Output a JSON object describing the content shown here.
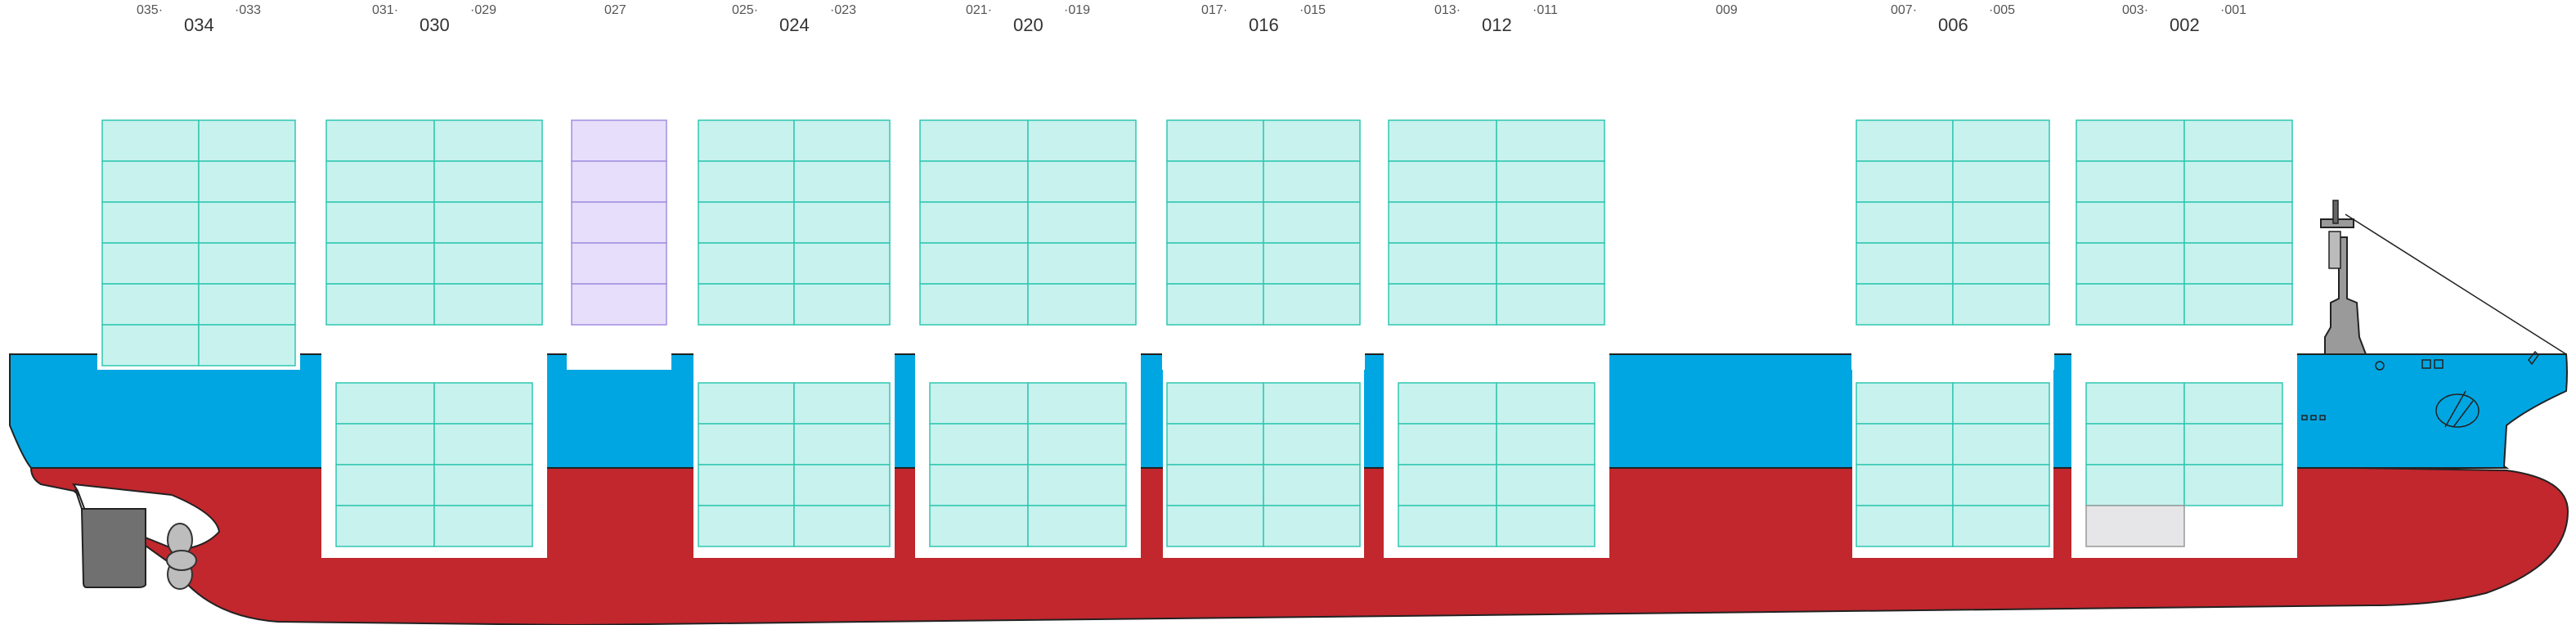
{
  "colors": {
    "hull_blue": "#00a6e2",
    "hull_red": "#c1272d",
    "container_fill": "#c8f2ee",
    "container_stroke": "#2fc7b1",
    "highlight_fill": "#e6defa",
    "highlight_stroke": "#a48ee2",
    "empty_fill": "#e6e6e8",
    "hatch_white": "#ffffff",
    "rudder": "#707070",
    "outline": "#222222"
  },
  "bays": [
    {
      "label": "034",
      "left_label": "035",
      "right_label": "033",
      "above_tiers": 6,
      "hold": false,
      "status": "loaded"
    },
    {
      "label": "030",
      "left_label": "031",
      "right_label": "029",
      "above_tiers": 5,
      "hold": true,
      "hold_tiers": 4,
      "status": "loaded"
    },
    {
      "label": "027",
      "above_tiers": 5,
      "hold": false,
      "status": "highlighted"
    },
    {
      "label": "024",
      "left_label": "025",
      "right_label": "023",
      "above_tiers": 5,
      "hold": true,
      "hold_tiers": 4,
      "status": "loaded"
    },
    {
      "label": "020",
      "left_label": "021",
      "right_label": "019",
      "above_tiers": 5,
      "hold": true,
      "hold_tiers": 4,
      "status": "loaded"
    },
    {
      "label": "016",
      "left_label": "017",
      "right_label": "015",
      "above_tiers": 5,
      "hold": true,
      "hold_tiers": 4,
      "status": "loaded"
    },
    {
      "label": "012",
      "left_label": "013",
      "right_label": "011",
      "above_tiers": 5,
      "hold": true,
      "hold_tiers": 4,
      "status": "loaded"
    },
    {
      "label": "009",
      "above_tiers": 0,
      "hold": false,
      "status": "empty"
    },
    {
      "label": "006",
      "left_label": "007",
      "right_label": "005",
      "above_tiers": 5,
      "hold": true,
      "hold_tiers": 4,
      "status": "loaded"
    },
    {
      "label": "002",
      "left_label": "003",
      "right_label": "001",
      "above_tiers": 5,
      "hold": true,
      "hold_tiers": 3,
      "status": "loaded"
    }
  ]
}
